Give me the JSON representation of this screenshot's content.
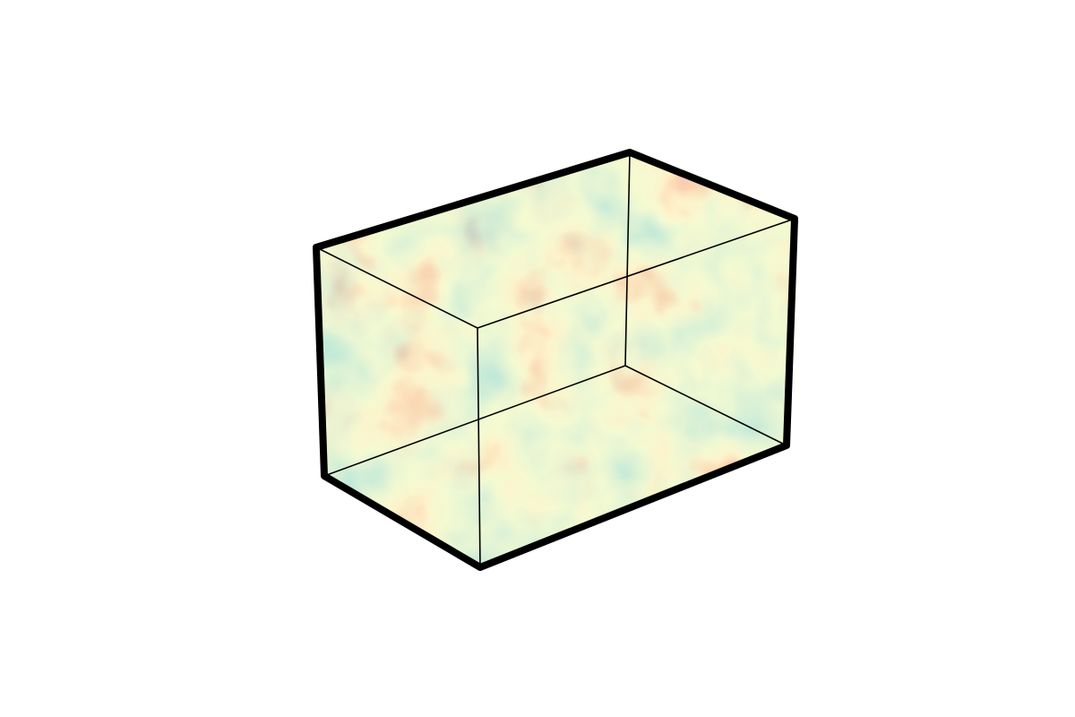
{
  "figure": {
    "description_tag": "volume-render",
    "edge_color": "#000000",
    "background_color": "#ffffff",
    "colormap": [
      "#9e0142",
      "#d53e4f",
      "#f46d43",
      "#fdae61",
      "#fee08b",
      "#e6f598",
      "#abdda4",
      "#66c2a5",
      "#3288bd",
      "#5e4fa2"
    ],
    "faces": [
      "front",
      "right",
      "top"
    ]
  }
}
